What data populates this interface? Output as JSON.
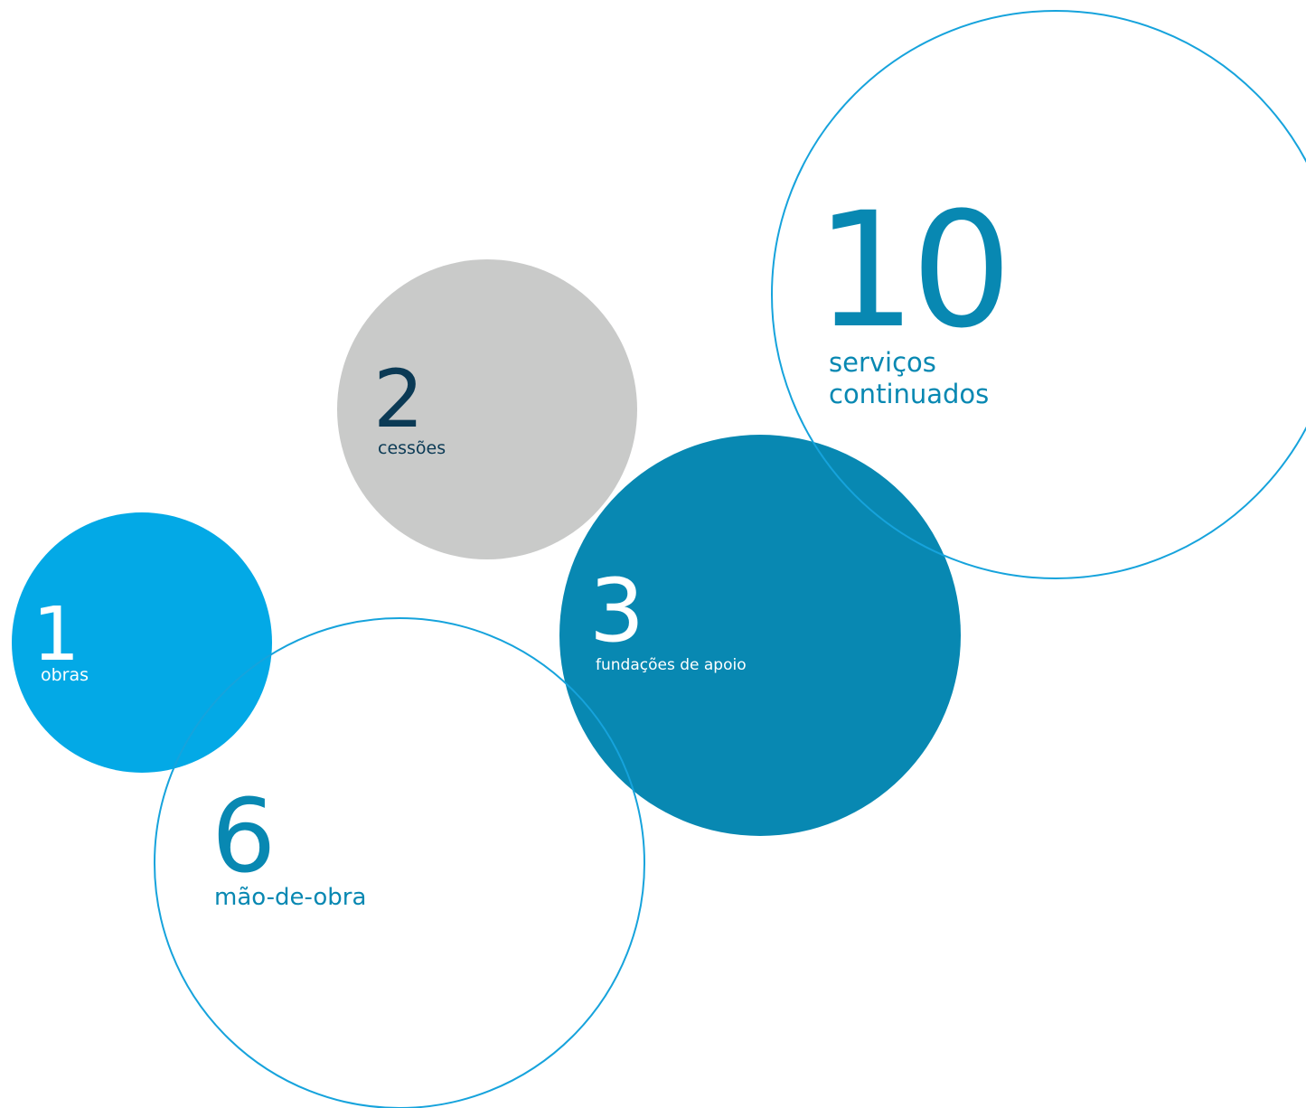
{
  "colors": {
    "light_blue": "#03a9e6",
    "dark_teal": "#0888b2",
    "grey": "#c9cac9",
    "navy": "#0b3a55",
    "white": "#ffffff",
    "outline": "#16a3dc"
  },
  "bubbles": [
    {
      "id": "servicos-continuados",
      "value": "10",
      "label": "serviços\ncontinuados",
      "style": "outline",
      "text_color": "dark_teal"
    },
    {
      "id": "cessoes",
      "value": "2",
      "label": "cessões",
      "style": "filled",
      "fill": "grey",
      "text_color": "navy"
    },
    {
      "id": "fundacoes-de-apoio",
      "value": "3",
      "label": "fundações de apoio",
      "style": "filled",
      "fill": "dark_teal",
      "text_color": "white"
    },
    {
      "id": "mao-de-obra",
      "value": "6",
      "label": "mão-de-obra",
      "style": "outline",
      "text_color": "dark_teal"
    },
    {
      "id": "obras",
      "value": "1",
      "label": "obras",
      "style": "filled",
      "fill": "light_blue",
      "text_color": "white"
    }
  ]
}
